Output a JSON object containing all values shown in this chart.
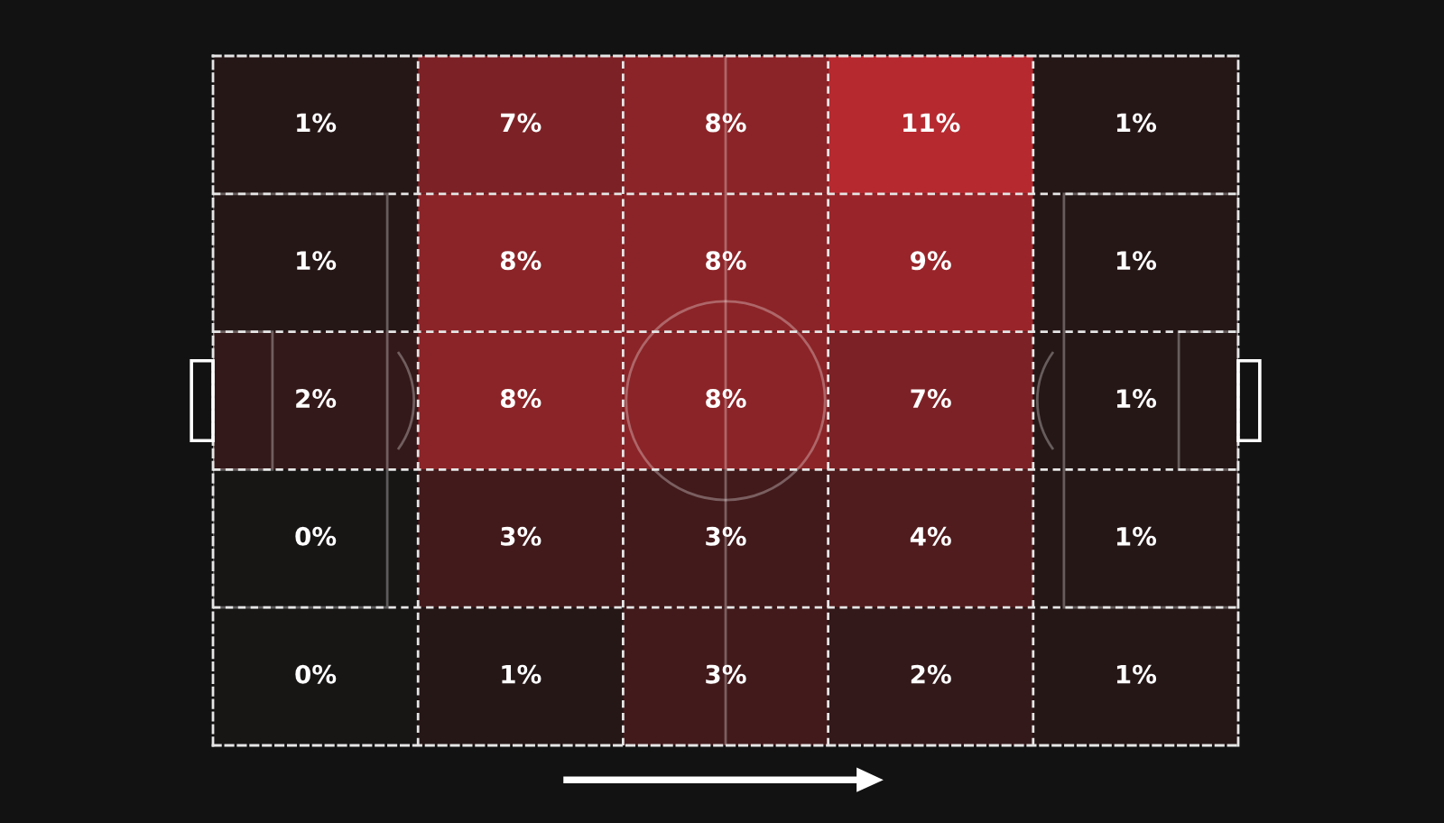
{
  "chart_data": {
    "type": "heatmap",
    "categories": [
      null,
      null,
      null,
      null,
      null
    ],
    "y_categories": [
      null,
      null,
      null,
      null,
      null
    ],
    "cells": [
      [
        1,
        7,
        8,
        11,
        1
      ],
      [
        1,
        8,
        8,
        9,
        1
      ],
      [
        2,
        8,
        8,
        7,
        1
      ],
      [
        0,
        3,
        3,
        4,
        1
      ],
      [
        0,
        1,
        3,
        2,
        1
      ]
    ],
    "cell_labels": [
      [
        "1%",
        "7%",
        "8%",
        "11%",
        "1%"
      ],
      [
        "1%",
        "8%",
        "8%",
        "9%",
        "1%"
      ],
      [
        "2%",
        "8%",
        "8%",
        "7%",
        "1%"
      ],
      [
        "0%",
        "3%",
        "3%",
        "4%",
        "1%"
      ],
      [
        "0%",
        "1%",
        "3%",
        "2%",
        "1%"
      ]
    ]
  }
}
